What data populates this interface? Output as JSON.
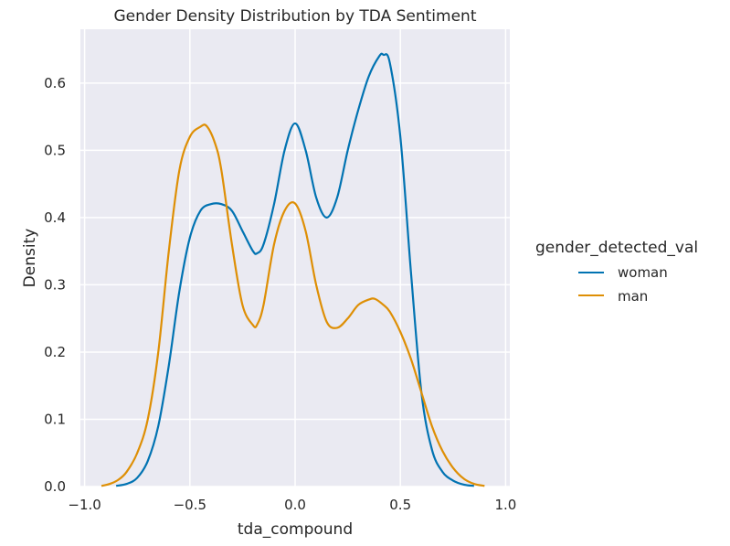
{
  "chart_data": {
    "type": "line",
    "title": "Gender Density Distribution by TDA Sentiment",
    "xlabel": "tda_compound",
    "ylabel": "Density",
    "xlim": [
      -1.02,
      1.02
    ],
    "ylim": [
      0.0,
      0.68
    ],
    "xticks": [
      -1.0,
      -0.5,
      0.0,
      0.5,
      1.0
    ],
    "xtick_labels": [
      "−1.0",
      "−0.5",
      "0.0",
      "0.5",
      "1.0"
    ],
    "yticks": [
      0.0,
      0.1,
      0.2,
      0.3,
      0.4,
      0.5,
      0.6
    ],
    "ytick_labels": [
      "0.0",
      "0.1",
      "0.2",
      "0.3",
      "0.4",
      "0.5",
      "0.6"
    ],
    "grid": true,
    "background": "#eaeaf2",
    "legend": {
      "title": "gender_detected_val",
      "placement": "right",
      "entries": [
        "woman",
        "man"
      ]
    },
    "series": [
      {
        "name": "woman",
        "color": "#0173b2",
        "x": [
          -0.85,
          -0.8,
          -0.75,
          -0.7,
          -0.65,
          -0.6,
          -0.55,
          -0.5,
          -0.45,
          -0.4,
          -0.35,
          -0.3,
          -0.25,
          -0.2,
          -0.18,
          -0.15,
          -0.1,
          -0.05,
          0.0,
          0.05,
          0.1,
          0.15,
          0.2,
          0.25,
          0.3,
          0.35,
          0.4,
          0.42,
          0.45,
          0.5,
          0.55,
          0.6,
          0.65,
          0.7,
          0.75,
          0.8,
          0.85
        ],
        "y": [
          0.001,
          0.004,
          0.013,
          0.038,
          0.09,
          0.18,
          0.29,
          0.37,
          0.41,
          0.42,
          0.42,
          0.41,
          0.38,
          0.35,
          0.347,
          0.36,
          0.42,
          0.5,
          0.54,
          0.5,
          0.43,
          0.4,
          0.43,
          0.5,
          0.56,
          0.61,
          0.64,
          0.642,
          0.63,
          0.52,
          0.32,
          0.14,
          0.055,
          0.022,
          0.009,
          0.003,
          0.001
        ]
      },
      {
        "name": "man",
        "color": "#de8f05",
        "x": [
          -0.92,
          -0.88,
          -0.84,
          -0.8,
          -0.75,
          -0.7,
          -0.65,
          -0.6,
          -0.55,
          -0.5,
          -0.45,
          -0.42,
          -0.38,
          -0.35,
          -0.3,
          -0.25,
          -0.2,
          -0.18,
          -0.15,
          -0.1,
          -0.05,
          0.0,
          0.05,
          0.1,
          0.15,
          0.2,
          0.25,
          0.3,
          0.35,
          0.38,
          0.42,
          0.45,
          0.5,
          0.55,
          0.6,
          0.65,
          0.7,
          0.75,
          0.8,
          0.85,
          0.9
        ],
        "y": [
          0.001,
          0.004,
          0.01,
          0.022,
          0.05,
          0.1,
          0.2,
          0.35,
          0.47,
          0.52,
          0.535,
          0.536,
          0.51,
          0.47,
          0.36,
          0.27,
          0.24,
          0.241,
          0.27,
          0.36,
          0.41,
          0.421,
          0.38,
          0.3,
          0.245,
          0.236,
          0.25,
          0.27,
          0.278,
          0.279,
          0.27,
          0.26,
          0.23,
          0.19,
          0.14,
          0.09,
          0.053,
          0.028,
          0.012,
          0.004,
          0.001
        ]
      }
    ]
  }
}
